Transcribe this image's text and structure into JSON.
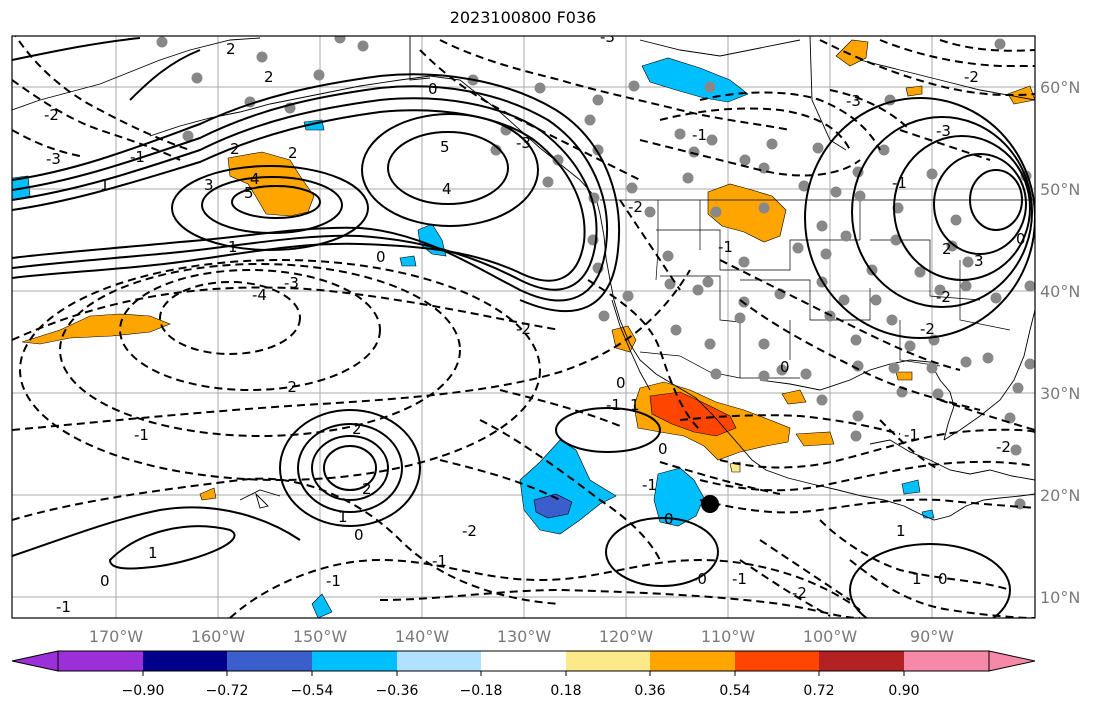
{
  "title": "2023100800 F036",
  "lon_ticks": [
    "170°W",
    "160°W",
    "150°W",
    "140°W",
    "130°W",
    "120°W",
    "110°W",
    "100°W",
    "90°W"
  ],
  "lat_ticks": [
    "60°N",
    "50°N",
    "40°N",
    "30°N",
    "20°N",
    "10°N"
  ],
  "colorbar": {
    "tick_labels": [
      "−0.90",
      "−0.72",
      "−0.54",
      "−0.36",
      "−0.18",
      "0.18",
      "0.36",
      "0.54",
      "0.72",
      "0.90"
    ],
    "colors": [
      "#9b30d9",
      "#00008b",
      "#3a5fcd",
      "#00bfff",
      "#b0e2ff",
      "#ffffff",
      "#fce98a",
      "#ffa500",
      "#ff4500",
      "#b22222",
      "#f789a8"
    ]
  },
  "contour_labels": [
    {
      "text": "2"
    },
    {
      "text": "2"
    },
    {
      "text": "2"
    },
    {
      "text": "3"
    },
    {
      "text": "4"
    },
    {
      "text": "5"
    },
    {
      "text": "2"
    },
    {
      "text": "1"
    },
    {
      "text": "0"
    },
    {
      "text": "5"
    },
    {
      "text": "4"
    },
    {
      "text": "0"
    },
    {
      "text": "-2"
    },
    {
      "text": "-3"
    },
    {
      "text": "-1"
    },
    {
      "text": "1"
    },
    {
      "text": "-4"
    },
    {
      "text": "-3"
    },
    {
      "text": "-2"
    },
    {
      "text": "-2"
    },
    {
      "text": "-1"
    },
    {
      "text": "2"
    },
    {
      "text": "-3"
    },
    {
      "text": "2"
    },
    {
      "text": "1"
    },
    {
      "text": "1"
    },
    {
      "text": "0"
    },
    {
      "text": "0"
    },
    {
      "text": "-1"
    },
    {
      "text": "-1"
    },
    {
      "text": "-2"
    },
    {
      "text": "-1"
    },
    {
      "text": "0"
    },
    {
      "text": "-1"
    },
    {
      "text": "-1"
    },
    {
      "text": "0"
    },
    {
      "text": "1"
    },
    {
      "text": "0"
    },
    {
      "text": "-0"
    },
    {
      "text": "-1"
    },
    {
      "text": "-2"
    },
    {
      "text": "-1"
    },
    {
      "text": "-2"
    },
    {
      "text": "-3"
    },
    {
      "text": "-2"
    },
    {
      "text": "-1"
    },
    {
      "text": "0"
    },
    {
      "text": "1"
    },
    {
      "text": "-3"
    },
    {
      "text": "-2"
    },
    {
      "text": "-1"
    },
    {
      "text": "-3"
    },
    {
      "text": "3"
    },
    {
      "text": "2"
    },
    {
      "text": "-2"
    },
    {
      "text": "-2"
    },
    {
      "text": "-1"
    },
    {
      "text": "0"
    },
    {
      "text": "1"
    },
    {
      "text": "0"
    }
  ]
}
